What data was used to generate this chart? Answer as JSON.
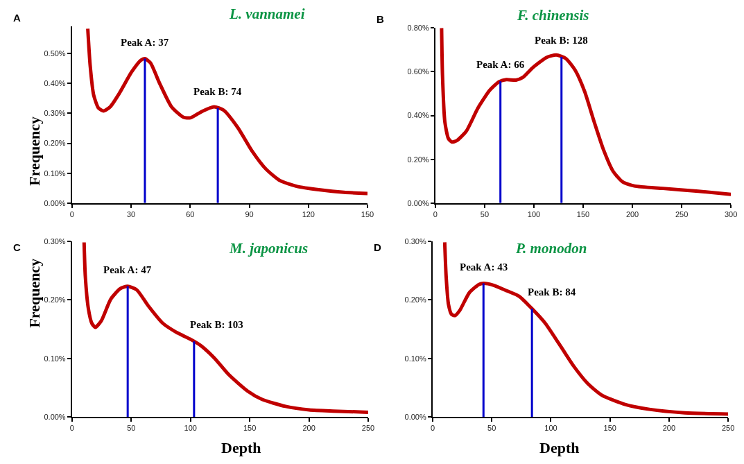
{
  "chart_data": [
    {
      "type": "line",
      "title": "L. vannamei",
      "ylabel": "Frequency",
      "annotations": [
        "A"
      ],
      "x": [
        8.0,
        9.2,
        11.0,
        13.4,
        16.0,
        19.4,
        24.2,
        30.2,
        35.0,
        37.0,
        39.8,
        44.5,
        50.5,
        56.5,
        60.1,
        66.1,
        72.1,
        76.9,
        84.1,
        91.3,
        98.4,
        105.6,
        114,
        126,
        138,
        150
      ],
      "series": [
        {
          "color": "#c00000",
          "values": [
            0.583,
            0.461,
            0.361,
            0.318,
            0.308,
            0.322,
            0.369,
            0.438,
            0.478,
            0.483,
            0.469,
            0.4,
            0.322,
            0.287,
            0.285,
            0.307,
            0.322,
            0.311,
            0.253,
            0.175,
            0.114,
            0.075,
            0.056,
            0.044,
            0.036,
            0.032
          ]
        }
      ],
      "xlim": [
        0,
        150
      ],
      "xticks": [
        0,
        30,
        60,
        90,
        120,
        150
      ],
      "ylim": [
        0,
        0.59
      ],
      "yticks": [
        {
          "value": 0,
          "label": "0.00%"
        },
        {
          "value": 0.1,
          "label": "0.10%"
        },
        {
          "value": 0.2,
          "label": "0.20%"
        },
        {
          "value": 0.3,
          "label": "0.30%"
        },
        {
          "value": 0.4,
          "label": "0.40%"
        },
        {
          "value": 0.5,
          "label": "0.50%"
        }
      ],
      "ref_lines": [
        {
          "axis": "x",
          "value": 37,
          "label": "Peak A: 37",
          "color": "#0000cc"
        },
        {
          "axis": "x",
          "value": 74,
          "label": "Peak B: 74",
          "color": "#0000cc"
        }
      ],
      "marker": "none",
      "line_style": "solid"
    },
    {
      "type": "line",
      "title": "F. chinensis",
      "annotations": [
        "B"
      ],
      "x": [
        6.3,
        7.2,
        9.6,
        13.2,
        16.8,
        21.6,
        31.3,
        43.3,
        55.3,
        64.9,
        72.1,
        81.8,
        89,
        98.6,
        113,
        122.7,
        132.3,
        141.9,
        151.5,
        161.2,
        170.8,
        180.4,
        190,
        202,
        231,
        267,
        300
      ],
      "series": [
        {
          "color": "#c00000",
          "values": [
            0.8,
            0.585,
            0.371,
            0.295,
            0.279,
            0.285,
            0.328,
            0.435,
            0.516,
            0.555,
            0.564,
            0.562,
            0.575,
            0.618,
            0.666,
            0.677,
            0.661,
            0.607,
            0.51,
            0.371,
            0.242,
            0.145,
            0.097,
            0.078,
            0.067,
            0.054,
            0.04
          ]
        }
      ],
      "xlim": [
        0,
        300
      ],
      "xticks": [
        0,
        50,
        100,
        150,
        200,
        250,
        300
      ],
      "ylim": [
        0,
        0.8
      ],
      "yticks": [
        {
          "value": 0,
          "label": "0.00%"
        },
        {
          "value": 0.2,
          "label": "0.20%"
        },
        {
          "value": 0.4,
          "label": "0.40%"
        },
        {
          "value": 0.6,
          "label": "0.60%"
        },
        {
          "value": 0.8,
          "label": "0.80%"
        }
      ],
      "ref_lines": [
        {
          "axis": "x",
          "value": 66,
          "label": "Peak A: 66",
          "color": "#0000cc"
        },
        {
          "axis": "x",
          "value": 128,
          "label": "Peak B: 128",
          "color": "#0000cc"
        }
      ],
      "marker": "none",
      "line_style": "solid"
    },
    {
      "type": "line",
      "title": "M. japonicus",
      "ylabel": "Frequency",
      "xlabel": "Depth",
      "annotations": [
        "C"
      ],
      "x": [
        10.2,
        11.2,
        13.8,
        16.7,
        19.7,
        24.7,
        32.7,
        40.7,
        46.9,
        54.6,
        64.6,
        76.6,
        88.5,
        100.5,
        108.5,
        120.4,
        132.4,
        148.3,
        160.3,
        180.2,
        200.2,
        220.1,
        250
      ],
      "series": [
        {
          "color": "#c00000",
          "values": [
            0.298,
            0.241,
            0.185,
            0.16,
            0.153,
            0.164,
            0.201,
            0.219,
            0.223,
            0.217,
            0.189,
            0.16,
            0.144,
            0.132,
            0.122,
            0.1,
            0.072,
            0.044,
            0.03,
            0.018,
            0.012,
            0.01,
            0.008
          ]
        }
      ],
      "xlim": [
        0,
        250
      ],
      "xticks": [
        0,
        50,
        100,
        150,
        200,
        250
      ],
      "ylim": [
        0,
        0.3
      ],
      "yticks": [
        {
          "value": 0,
          "label": "0.00%"
        },
        {
          "value": 0.1,
          "label": "0.10%"
        },
        {
          "value": 0.2,
          "label": "0.20%"
        },
        {
          "value": 0.3,
          "label": "0.30%"
        }
      ],
      "ref_lines": [
        {
          "axis": "x",
          "value": 47,
          "label": "Peak A: 47",
          "color": "#0000cc"
        },
        {
          "axis": "x",
          "value": 103,
          "label": "Peak B: 103",
          "color": "#0000cc"
        }
      ],
      "marker": "none",
      "line_style": "solid"
    },
    {
      "type": "line",
      "title": "P. monodon",
      "xlabel": "Depth",
      "annotations": [
        "D"
      ],
      "x": [
        10.2,
        11.4,
        13.4,
        16.0,
        19.0,
        23.0,
        31.0,
        39.1,
        43.1,
        51.1,
        63.1,
        73.1,
        84.9,
        95.2,
        107.2,
        119.2,
        131.2,
        143.2,
        163.3,
        183.3,
        213.3,
        250
      ],
      "series": [
        {
          "color": "#c00000",
          "values": [
            0.298,
            0.24,
            0.192,
            0.175,
            0.173,
            0.182,
            0.212,
            0.226,
            0.228,
            0.225,
            0.215,
            0.206,
            0.183,
            0.16,
            0.124,
            0.087,
            0.057,
            0.037,
            0.021,
            0.013,
            0.007,
            0.005
          ]
        }
      ],
      "xlim": [
        0,
        250
      ],
      "xticks": [
        0,
        50,
        100,
        150,
        200,
        250
      ],
      "ylim": [
        0,
        0.3
      ],
      "yticks": [
        {
          "value": 0,
          "label": "0.00%"
        },
        {
          "value": 0.1,
          "label": "0.10%"
        },
        {
          "value": 0.2,
          "label": "0.20%"
        },
        {
          "value": 0.3,
          "label": "0.30%"
        }
      ],
      "ref_lines": [
        {
          "axis": "x",
          "value": 43,
          "label": "Peak A: 43",
          "color": "#0000cc"
        },
        {
          "axis": "x",
          "value": 84,
          "label": "Peak B: 84",
          "color": "#0000cc"
        }
      ],
      "marker": "none",
      "line_style": "solid"
    }
  ]
}
